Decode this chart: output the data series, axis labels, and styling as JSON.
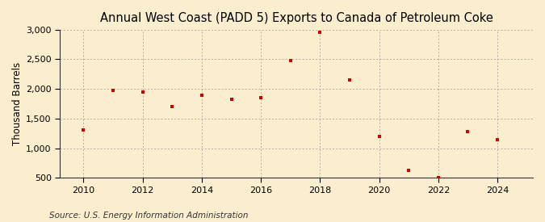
{
  "title": "Annual West Coast (PADD 5) Exports to Canada of Petroleum Coke",
  "ylabel": "Thousand Barrels",
  "source": "Source: U.S. Energy Information Administration",
  "years": [
    2010,
    2011,
    2012,
    2013,
    2014,
    2015,
    2016,
    2017,
    2018,
    2019,
    2020,
    2021,
    2022,
    2023,
    2024
  ],
  "values": [
    1310,
    1975,
    1950,
    1700,
    1900,
    1825,
    1850,
    2475,
    2950,
    2150,
    1200,
    625,
    500,
    1275,
    1150
  ],
  "marker_color": "#cc0000",
  "background_color": "#faeece",
  "grid_color": "#999999",
  "ylim": [
    500,
    3000
  ],
  "yticks": [
    500,
    1000,
    1500,
    2000,
    2500,
    3000
  ],
  "xticks": [
    2010,
    2012,
    2014,
    2016,
    2018,
    2020,
    2022,
    2024
  ],
  "title_fontsize": 10.5,
  "label_fontsize": 8.5,
  "tick_fontsize": 8,
  "source_fontsize": 7.5
}
